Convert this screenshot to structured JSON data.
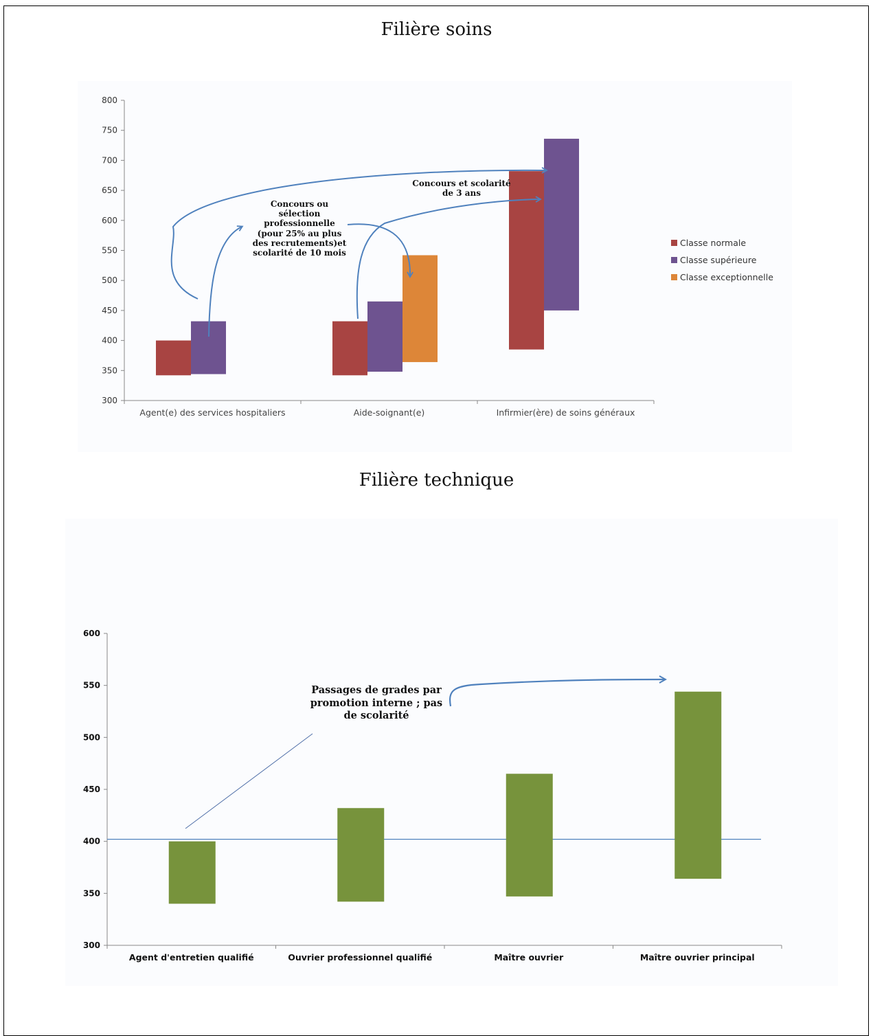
{
  "titles": {
    "soins": "Filière soins",
    "technique": "Filière technique"
  },
  "notes": {
    "concours_selection": "Concours  ou\nsélection\nprofessionnelle\n(pour 25% au plus\ndes recrutements)et\nscolarité de 10 mois",
    "concours_scolarite": "Concours et scolarité\nde 3 ans",
    "passages": "Passages de grades par\npromotion interne ; pas\nde scolarité"
  },
  "chart_data": [
    {
      "type": "bar",
      "variant": "floating-range",
      "title": "Filière soins",
      "categories": [
        "Agent(e) des services hospitaliers",
        "Aide-soignant(e)",
        "Infirmier(ère) de soins généraux"
      ],
      "ylim": [
        300,
        800
      ],
      "yticks": [
        300,
        350,
        400,
        450,
        500,
        550,
        600,
        650,
        700,
        750,
        800
      ],
      "grid": false,
      "legend_position": "right",
      "series": [
        {
          "name": "Classe normale",
          "color": "#a84442",
          "ranges": [
            [
              342,
              400
            ],
            [
              342,
              432
            ],
            [
              385,
              682
            ]
          ]
        },
        {
          "name": "Classe supérieure",
          "color": "#6e5390",
          "ranges": [
            [
              344,
              432
            ],
            [
              348,
              465
            ],
            [
              450,
              736
            ]
          ]
        },
        {
          "name": "Classe exceptionnelle",
          "color": "#dd8638",
          "ranges": [
            null,
            [
              364,
              542
            ],
            null
          ]
        }
      ]
    },
    {
      "type": "bar",
      "variant": "floating-range",
      "title": "Filière technique",
      "categories": [
        "Agent d'entretien qualifié",
        "Ouvrier professionnel qualifié",
        "Maître ouvrier",
        "Maître ouvrier principal"
      ],
      "ylim": [
        300,
        600
      ],
      "yticks": [
        300,
        350,
        400,
        450,
        500,
        550,
        600
      ],
      "grid": false,
      "reference_line": 402,
      "series": [
        {
          "name": "",
          "color": "#77933c",
          "ranges": [
            [
              340,
              400
            ],
            [
              342,
              432
            ],
            [
              347,
              465
            ],
            [
              364,
              544
            ]
          ]
        }
      ]
    }
  ]
}
